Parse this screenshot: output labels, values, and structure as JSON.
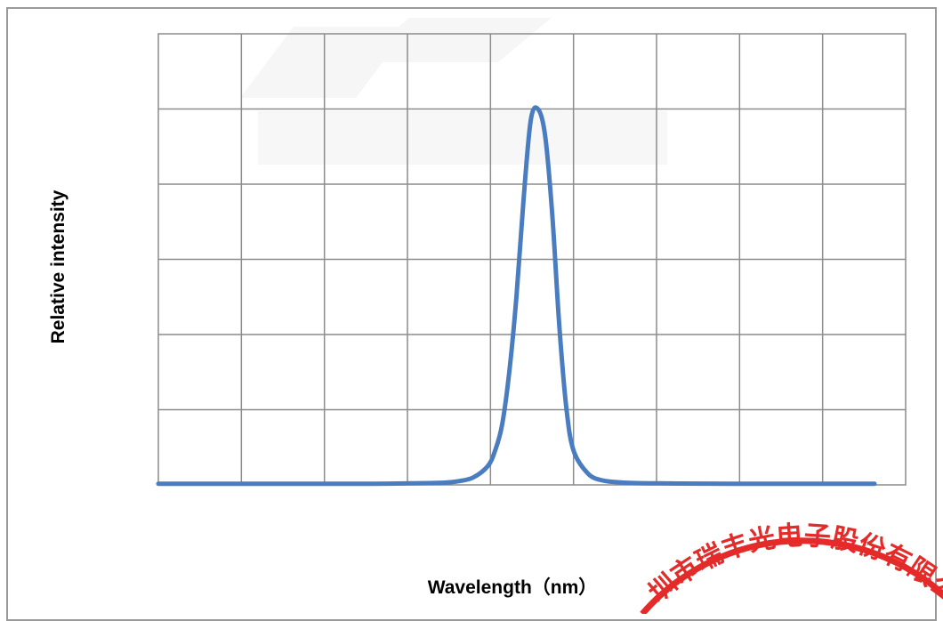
{
  "chart_data": {
    "type": "line",
    "title": "",
    "xlabel": "Wavelength（nm）",
    "ylabel": "Relative intensity",
    "grid": true,
    "xlim": [
      0,
      100
    ],
    "ylim": [
      0,
      1.2
    ],
    "series": [
      {
        "color": "#4a7dbf",
        "x": [
          0,
          10,
          20,
          30,
          35,
          40,
          42,
          44,
          46,
          47,
          48,
          49,
          50,
          51,
          52,
          53,
          54,
          55,
          56,
          57,
          58,
          60,
          62,
          65,
          70,
          80,
          90,
          100
        ],
        "y": [
          0.003,
          0.003,
          0.003,
          0.003,
          0.004,
          0.006,
          0.01,
          0.02,
          0.05,
          0.09,
          0.16,
          0.3,
          0.5,
          0.76,
          0.97,
          1.0,
          0.93,
          0.72,
          0.42,
          0.2,
          0.09,
          0.03,
          0.012,
          0.006,
          0.004,
          0.003,
          0.003,
          0.003
        ]
      }
    ]
  },
  "stamp": {
    "text": "圳市瑞丰光电子股份有限公"
  }
}
